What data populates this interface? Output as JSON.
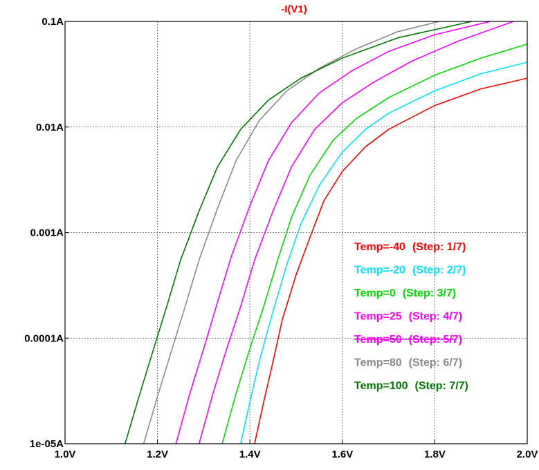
{
  "chart_data": {
    "type": "line",
    "title": "-I(V1)",
    "title_color": "#ff0000",
    "xlabel": "",
    "ylabel": "",
    "x_scale": "linear",
    "y_scale": "log",
    "xlim": [
      1.0,
      2.0
    ],
    "ylim": [
      1e-05,
      0.1
    ],
    "grid": true,
    "legend_position": "bottom-right",
    "x_ticks": [
      {
        "value": 1.0,
        "label": "1.0V"
      },
      {
        "value": 1.2,
        "label": "1.2V"
      },
      {
        "value": 1.4,
        "label": "1.4V"
      },
      {
        "value": 1.6,
        "label": "1.6V"
      },
      {
        "value": 1.8,
        "label": "1.8V"
      },
      {
        "value": 2.0,
        "label": "2.0V"
      }
    ],
    "y_ticks": [
      {
        "value": 0.1,
        "label": "0.1A"
      },
      {
        "value": 0.01,
        "label": "0.01A"
      },
      {
        "value": 0.001,
        "label": "0.001A"
      },
      {
        "value": 0.0001,
        "label": "0.0001A"
      },
      {
        "value": 1e-05,
        "label": "1e-05A"
      }
    ],
    "series": [
      {
        "name": "Temp=-40",
        "step": "(Step: 1/7)",
        "color": "#ff0000",
        "x": [
          1.41,
          1.43,
          1.45,
          1.47,
          1.5,
          1.53,
          1.56,
          1.6,
          1.65,
          1.7,
          1.8,
          1.9,
          2.0
        ],
        "y": [
          1e-05,
          2.5e-05,
          6e-05,
          0.00015,
          0.0004,
          0.0009,
          0.002,
          0.0038,
          0.0065,
          0.0095,
          0.016,
          0.023,
          0.029
        ]
      },
      {
        "name": "Temp=-20",
        "step": "(Step: 2/7)",
        "color": "#00e5ff",
        "x": [
          1.38,
          1.4,
          1.42,
          1.45,
          1.48,
          1.51,
          1.55,
          1.6,
          1.65,
          1.7,
          1.8,
          1.9,
          2.0
        ],
        "y": [
          1e-05,
          2.5e-05,
          6e-05,
          0.00018,
          0.0005,
          0.0012,
          0.0028,
          0.0058,
          0.0095,
          0.0135,
          0.022,
          0.032,
          0.041
        ]
      },
      {
        "name": "Temp=0",
        "step": "(Step: 3/7)",
        "color": "#00dd00",
        "x": [
          1.34,
          1.37,
          1.4,
          1.43,
          1.46,
          1.49,
          1.53,
          1.58,
          1.63,
          1.7,
          1.8,
          1.9,
          2.0
        ],
        "y": [
          1e-05,
          3e-05,
          8e-05,
          0.0002,
          0.00055,
          0.0014,
          0.0035,
          0.0075,
          0.012,
          0.019,
          0.031,
          0.045,
          0.061
        ]
      },
      {
        "name": "Temp=25",
        "step": "(Step: 4/7)",
        "color": "#ff00ff",
        "x": [
          1.29,
          1.32,
          1.35,
          1.38,
          1.41,
          1.45,
          1.49,
          1.54,
          1.6,
          1.67,
          1.75,
          1.85,
          1.97
        ],
        "y": [
          1e-05,
          3e-05,
          8e-05,
          0.0002,
          0.00055,
          0.0016,
          0.0042,
          0.0095,
          0.017,
          0.027,
          0.042,
          0.065,
          0.1
        ]
      },
      {
        "name": "Temp=50",
        "step": "(Step: 5/7)",
        "color": "#ff00ff",
        "x": [
          1.24,
          1.27,
          1.3,
          1.33,
          1.36,
          1.4,
          1.44,
          1.49,
          1.55,
          1.62,
          1.7,
          1.8,
          1.92
        ],
        "y": [
          1e-05,
          3e-05,
          8e-05,
          0.00022,
          0.0006,
          0.0018,
          0.0048,
          0.011,
          0.021,
          0.034,
          0.052,
          0.075,
          0.1
        ]
      },
      {
        "name": "Temp=80",
        "step": "(Step: 6/7)",
        "color": "#888888",
        "x": [
          1.17,
          1.2,
          1.23,
          1.26,
          1.29,
          1.33,
          1.37,
          1.42,
          1.48,
          1.55,
          1.63,
          1.72,
          1.81
        ],
        "y": [
          1e-05,
          2.8e-05,
          7.5e-05,
          0.0002,
          0.00055,
          0.0017,
          0.0048,
          0.0115,
          0.022,
          0.036,
          0.055,
          0.08,
          0.1
        ]
      },
      {
        "name": "Temp=100",
        "step": "(Step: 7/7)",
        "color": "#007700",
        "x": [
          1.13,
          1.16,
          1.19,
          1.22,
          1.25,
          1.29,
          1.33,
          1.38,
          1.44,
          1.51,
          1.6,
          1.72,
          1.88
        ],
        "y": [
          1e-05,
          2.8e-05,
          7.5e-05,
          0.0002,
          0.00055,
          0.0016,
          0.0042,
          0.0095,
          0.018,
          0.029,
          0.045,
          0.07,
          0.1
        ]
      }
    ]
  }
}
